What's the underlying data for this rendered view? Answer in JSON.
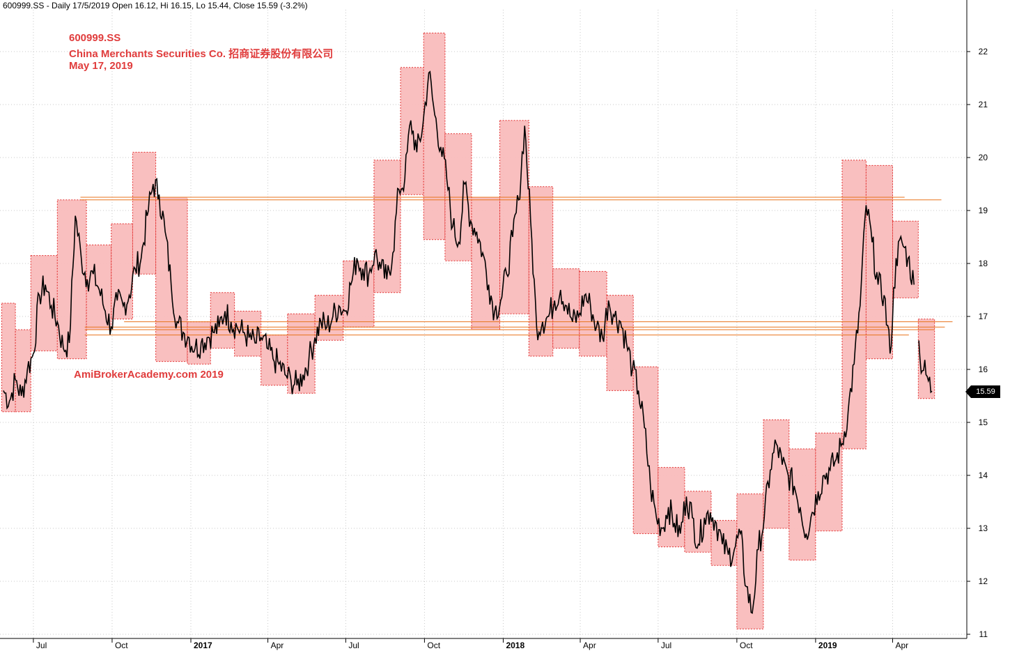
{
  "header": {
    "text": "600999.SS - Daily 17/5/2019 Open 16.12, Hi 16.15, Lo 15.44, Close 15.59 (-3.2%)"
  },
  "annotations": {
    "ticker": "600999.SS",
    "company": "China Merchants Securities Co.   招商证券股份有限公司",
    "date": "May 17, 2019",
    "watermark": "AmiBrokerAcademy.com    2019"
  },
  "last_price_label": "15.59",
  "colors": {
    "price_line": "#000000",
    "box_fill": "#f9bcbc",
    "box_border": "#e23030",
    "resistance_line": "#e8731c",
    "grid": "#c8c8c8",
    "annotation_text": "#e03c3c",
    "tag_bg": "#000000"
  },
  "chart_data": {
    "type": "line",
    "title": "600999.SS",
    "xlabel": "",
    "ylabel": "",
    "ylim": [
      11,
      22.5
    ],
    "yticks": [
      11,
      12,
      13,
      14,
      15,
      16,
      17,
      18,
      19,
      20,
      21,
      22
    ],
    "grid": true,
    "x_labels": [
      {
        "date": "2016-07",
        "label": "Jul",
        "bold": false
      },
      {
        "date": "2016-10",
        "label": "Oct",
        "bold": false
      },
      {
        "date": "2017-01",
        "label": "2017",
        "bold": true
      },
      {
        "date": "2017-04",
        "label": "Apr",
        "bold": false
      },
      {
        "date": "2017-07",
        "label": "Jul",
        "bold": false
      },
      {
        "date": "2017-10",
        "label": "Oct",
        "bold": false
      },
      {
        "date": "2018-01",
        "label": "2018",
        "bold": true
      },
      {
        "date": "2018-04",
        "label": "Apr",
        "bold": false
      },
      {
        "date": "2018-07",
        "label": "Jul",
        "bold": false
      },
      {
        "date": "2018-10",
        "label": "Oct",
        "bold": false
      },
      {
        "date": "2019-01",
        "label": "2019",
        "bold": true
      },
      {
        "date": "2019-04",
        "label": "Apr",
        "bold": false
      }
    ],
    "series": [
      {
        "values_by_date": [
          [
            "2016-05-27",
            15.6
          ],
          [
            "2016-06-03",
            15.4
          ],
          [
            "2016-06-10",
            15.8
          ],
          [
            "2016-06-17",
            15.5
          ],
          [
            "2016-06-24",
            16.0
          ],
          [
            "2016-07-01",
            16.3
          ],
          [
            "2016-07-08",
            17.4
          ],
          [
            "2016-07-15",
            17.6
          ],
          [
            "2016-07-22",
            17.2
          ],
          [
            "2016-07-29",
            16.9
          ],
          [
            "2016-08-05",
            16.4
          ],
          [
            "2016-08-12",
            16.5
          ],
          [
            "2016-08-19",
            18.9
          ],
          [
            "2016-08-26",
            18.1
          ],
          [
            "2016-09-02",
            17.7
          ],
          [
            "2016-09-09",
            17.8
          ],
          [
            "2016-09-16",
            17.5
          ],
          [
            "2016-09-23",
            17.1
          ],
          [
            "2016-09-30",
            16.8
          ],
          [
            "2016-10-07",
            17.3
          ],
          [
            "2016-10-14",
            17.2
          ],
          [
            "2016-10-21",
            17.4
          ],
          [
            "2016-10-28",
            17.9
          ],
          [
            "2016-11-04",
            18.1
          ],
          [
            "2016-11-11",
            18.9
          ],
          [
            "2016-11-18",
            19.5
          ],
          [
            "2016-11-25",
            19.3
          ],
          [
            "2016-12-02",
            18.6
          ],
          [
            "2016-12-09",
            17.6
          ],
          [
            "2016-12-16",
            16.9
          ],
          [
            "2016-12-23",
            16.7
          ],
          [
            "2016-12-30",
            16.6
          ],
          [
            "2017-01-06",
            16.4
          ],
          [
            "2017-01-13",
            16.5
          ],
          [
            "2017-01-20",
            16.6
          ],
          [
            "2017-01-27",
            16.7
          ],
          [
            "2017-02-03",
            16.8
          ],
          [
            "2017-02-10",
            17.1
          ],
          [
            "2017-02-17",
            16.9
          ],
          [
            "2017-02-24",
            16.8
          ],
          [
            "2017-03-03",
            16.7
          ],
          [
            "2017-03-10",
            16.6
          ],
          [
            "2017-03-17",
            16.5
          ],
          [
            "2017-03-24",
            16.6
          ],
          [
            "2017-03-31",
            16.4
          ],
          [
            "2017-04-07",
            16.2
          ],
          [
            "2017-04-14",
            16.1
          ],
          [
            "2017-04-21",
            15.9
          ],
          [
            "2017-04-28",
            15.8
          ],
          [
            "2017-05-05",
            15.7
          ],
          [
            "2017-05-12",
            15.9
          ],
          [
            "2017-05-19",
            16.2
          ],
          [
            "2017-05-26",
            16.6
          ],
          [
            "2017-06-02",
            16.9
          ],
          [
            "2017-06-09",
            16.8
          ],
          [
            "2017-06-16",
            17.0
          ],
          [
            "2017-06-23",
            17.2
          ],
          [
            "2017-06-30",
            17.1
          ],
          [
            "2017-07-07",
            17.6
          ],
          [
            "2017-07-14",
            18.1
          ],
          [
            "2017-07-21",
            17.9
          ],
          [
            "2017-07-28",
            17.8
          ],
          [
            "2017-08-04",
            18.2
          ],
          [
            "2017-08-11",
            17.9
          ],
          [
            "2017-08-18",
            17.7
          ],
          [
            "2017-08-25",
            18.2
          ],
          [
            "2017-09-01",
            19.4
          ],
          [
            "2017-09-08",
            19.6
          ],
          [
            "2017-09-15",
            20.7
          ],
          [
            "2017-09-22",
            20.1
          ],
          [
            "2017-09-29",
            20.6
          ],
          [
            "2017-10-06",
            21.6
          ],
          [
            "2017-10-13",
            20.8
          ],
          [
            "2017-10-20",
            20.2
          ],
          [
            "2017-10-27",
            19.6
          ],
          [
            "2017-11-03",
            18.7
          ],
          [
            "2017-11-10",
            18.4
          ],
          [
            "2017-11-17",
            19.5
          ],
          [
            "2017-11-24",
            18.8
          ],
          [
            "2017-12-01",
            18.6
          ],
          [
            "2017-12-08",
            18.2
          ],
          [
            "2017-12-15",
            17.6
          ],
          [
            "2017-12-22",
            17.1
          ],
          [
            "2017-12-29",
            17.3
          ],
          [
            "2018-01-05",
            17.8
          ],
          [
            "2018-01-12",
            18.5
          ],
          [
            "2018-01-19",
            19.2
          ],
          [
            "2018-01-26",
            20.6
          ],
          [
            "2018-02-02",
            18.8
          ],
          [
            "2018-02-09",
            16.8
          ],
          [
            "2018-02-16",
            16.9
          ],
          [
            "2018-02-23",
            17.0
          ],
          [
            "2018-03-02",
            17.3
          ],
          [
            "2018-03-09",
            17.5
          ],
          [
            "2018-03-16",
            17.2
          ],
          [
            "2018-03-23",
            16.9
          ],
          [
            "2018-03-30",
            17.0
          ],
          [
            "2018-04-06",
            17.4
          ],
          [
            "2018-04-13",
            17.2
          ],
          [
            "2018-04-20",
            16.8
          ],
          [
            "2018-04-27",
            16.6
          ],
          [
            "2018-05-04",
            17.3
          ],
          [
            "2018-05-11",
            17.0
          ],
          [
            "2018-05-18",
            16.9
          ],
          [
            "2018-05-25",
            16.5
          ],
          [
            "2018-06-01",
            16.0
          ],
          [
            "2018-06-08",
            15.6
          ],
          [
            "2018-06-15",
            14.9
          ],
          [
            "2018-06-22",
            13.8
          ],
          [
            "2018-06-29",
            13.2
          ],
          [
            "2018-07-06",
            13.0
          ],
          [
            "2018-07-13",
            13.4
          ],
          [
            "2018-07-20",
            13.1
          ],
          [
            "2018-07-27",
            12.9
          ],
          [
            "2018-08-03",
            13.6
          ],
          [
            "2018-08-10",
            13.2
          ],
          [
            "2018-08-17",
            12.7
          ],
          [
            "2018-08-24",
            13.2
          ],
          [
            "2018-08-31",
            13.3
          ],
          [
            "2018-09-07",
            13.1
          ],
          [
            "2018-09-14",
            12.7
          ],
          [
            "2018-09-21",
            12.5
          ],
          [
            "2018-09-28",
            12.6
          ],
          [
            "2018-10-05",
            12.9
          ],
          [
            "2018-10-12",
            11.9
          ],
          [
            "2018-10-19",
            11.4
          ],
          [
            "2018-10-26",
            12.6
          ],
          [
            "2018-11-02",
            13.2
          ],
          [
            "2018-11-09",
            14.1
          ],
          [
            "2018-11-16",
            14.6
          ],
          [
            "2018-11-23",
            14.2
          ],
          [
            "2018-11-30",
            14.0
          ],
          [
            "2018-12-07",
            13.8
          ],
          [
            "2018-12-14",
            13.4
          ],
          [
            "2018-12-21",
            12.9
          ],
          [
            "2018-12-28",
            13.3
          ],
          [
            "2019-01-04",
            13.7
          ],
          [
            "2019-01-11",
            14.0
          ],
          [
            "2019-01-18",
            14.1
          ],
          [
            "2019-01-25",
            14.3
          ],
          [
            "2019-02-01",
            14.6
          ],
          [
            "2019-02-08",
            15.2
          ],
          [
            "2019-02-15",
            16.1
          ],
          [
            "2019-02-22",
            17.2
          ],
          [
            "2019-03-01",
            19.1
          ],
          [
            "2019-03-08",
            18.4
          ],
          [
            "2019-03-15",
            17.6
          ],
          [
            "2019-03-22",
            17.4
          ],
          [
            "2019-03-29",
            16.3
          ],
          [
            "2019-04-05",
            18.1
          ],
          [
            "2019-04-12",
            18.4
          ],
          [
            "2019-04-19",
            18.1
          ],
          [
            "2019-04-26",
            17.6
          ],
          [
            "2019-05-03",
            16.2
          ],
          [
            "2019-05-10",
            15.9
          ],
          [
            "2019-05-17",
            15.59
          ]
        ]
      }
    ],
    "range_boxes": [
      {
        "start": "2016-05-25",
        "end": "2016-06-10",
        "low": 15.2,
        "high": 17.25
      },
      {
        "start": "2016-06-10",
        "end": "2016-06-28",
        "low": 15.2,
        "high": 16.75
      },
      {
        "start": "2016-06-28",
        "end": "2016-07-29",
        "low": 16.35,
        "high": 18.15
      },
      {
        "start": "2016-07-29",
        "end": "2016-09-01",
        "low": 16.2,
        "high": 19.2
      },
      {
        "start": "2016-09-01",
        "end": "2016-09-30",
        "low": 16.75,
        "high": 18.35
      },
      {
        "start": "2016-09-30",
        "end": "2016-10-25",
        "low": 16.95,
        "high": 18.75
      },
      {
        "start": "2016-10-25",
        "end": "2016-11-21",
        "low": 17.8,
        "high": 20.1
      },
      {
        "start": "2016-11-21",
        "end": "2016-12-28",
        "low": 16.15,
        "high": 19.25
      },
      {
        "start": "2016-12-28",
        "end": "2017-01-24",
        "low": 16.1,
        "high": 16.9
      },
      {
        "start": "2017-01-24",
        "end": "2017-02-21",
        "low": 16.4,
        "high": 17.45
      },
      {
        "start": "2017-02-21",
        "end": "2017-03-24",
        "low": 16.25,
        "high": 17.1
      },
      {
        "start": "2017-03-24",
        "end": "2017-04-24",
        "low": 15.7,
        "high": 16.65
      },
      {
        "start": "2017-04-24",
        "end": "2017-05-26",
        "low": 15.55,
        "high": 17.05
      },
      {
        "start": "2017-05-26",
        "end": "2017-06-28",
        "low": 16.55,
        "high": 17.4
      },
      {
        "start": "2017-06-28",
        "end": "2017-08-03",
        "low": 16.8,
        "high": 18.05
      },
      {
        "start": "2017-08-03",
        "end": "2017-09-03",
        "low": 17.45,
        "high": 19.95
      },
      {
        "start": "2017-09-03",
        "end": "2017-09-30",
        "low": 19.3,
        "high": 21.7
      },
      {
        "start": "2017-09-30",
        "end": "2017-10-25",
        "low": 18.45,
        "high": 22.35
      },
      {
        "start": "2017-10-25",
        "end": "2017-11-25",
        "low": 18.05,
        "high": 20.45
      },
      {
        "start": "2017-11-25",
        "end": "2017-12-28",
        "low": 16.75,
        "high": 19.25
      },
      {
        "start": "2017-12-28",
        "end": "2018-01-31",
        "low": 17.05,
        "high": 20.7
      },
      {
        "start": "2018-01-31",
        "end": "2018-02-28",
        "low": 16.25,
        "high": 19.45
      },
      {
        "start": "2018-02-28",
        "end": "2018-03-31",
        "low": 16.4,
        "high": 17.9
      },
      {
        "start": "2018-03-31",
        "end": "2018-05-02",
        "low": 16.25,
        "high": 17.85
      },
      {
        "start": "2018-05-02",
        "end": "2018-06-02",
        "low": 15.6,
        "high": 17.4
      },
      {
        "start": "2018-06-02",
        "end": "2018-07-01",
        "low": 12.9,
        "high": 16.05
      },
      {
        "start": "2018-07-01",
        "end": "2018-08-01",
        "low": 12.65,
        "high": 14.15
      },
      {
        "start": "2018-08-01",
        "end": "2018-09-01",
        "low": 12.55,
        "high": 13.7
      },
      {
        "start": "2018-09-01",
        "end": "2018-10-01",
        "low": 12.3,
        "high": 13.15
      },
      {
        "start": "2018-10-01",
        "end": "2018-11-01",
        "low": 11.1,
        "high": 13.65
      },
      {
        "start": "2018-11-01",
        "end": "2018-12-01",
        "low": 13.0,
        "high": 15.05
      },
      {
        "start": "2018-12-01",
        "end": "2019-01-01",
        "low": 12.4,
        "high": 14.5
      },
      {
        "start": "2019-01-01",
        "end": "2019-02-01",
        "low": 12.95,
        "high": 14.8
      },
      {
        "start": "2019-02-01",
        "end": "2019-03-01",
        "low": 14.5,
        "high": 19.95
      },
      {
        "start": "2019-03-01",
        "end": "2019-04-01",
        "low": 16.2,
        "high": 19.85
      },
      {
        "start": "2019-04-01",
        "end": "2019-05-01",
        "low": 17.35,
        "high": 18.8
      },
      {
        "start": "2019-05-01",
        "end": "2019-05-20",
        "low": 15.45,
        "high": 16.95
      }
    ],
    "resistance_lines": [
      {
        "start": "2016-08-25",
        "end": "2019-04-15",
        "y": 19.25
      },
      {
        "start": "2016-08-25",
        "end": "2019-05-28",
        "y": 19.2
      },
      {
        "start": "2016-10-15",
        "end": "2019-06-10",
        "y": 16.9
      },
      {
        "start": "2016-08-30",
        "end": "2019-06-01",
        "y": 16.8
      },
      {
        "start": "2016-08-30",
        "end": "2019-05-20",
        "y": 16.75
      },
      {
        "start": "2016-08-30",
        "end": "2019-04-20",
        "y": 16.65
      }
    ]
  }
}
